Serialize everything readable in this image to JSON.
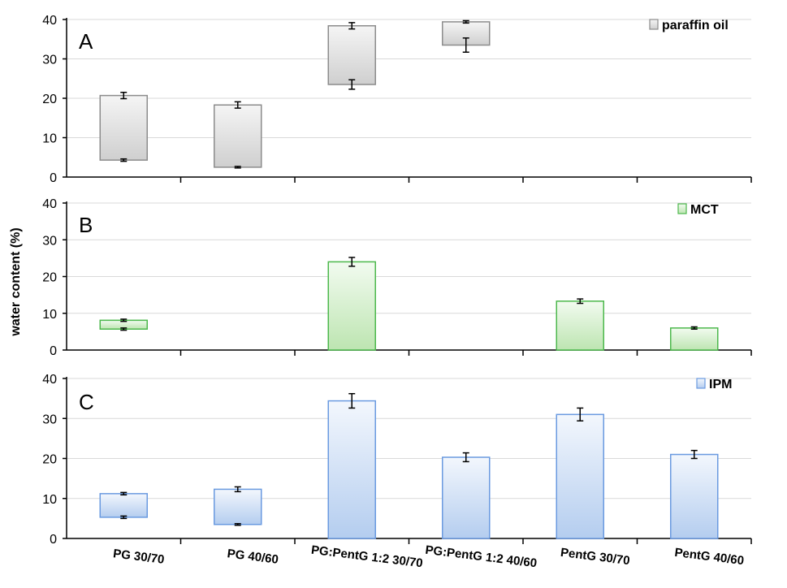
{
  "chart_data": {
    "type": "bar",
    "ylabel": "water content (%)",
    "categories": [
      "PG 30/70",
      "PG 40/60",
      "PG:PentG 1:2 30/70",
      "PG:PentG 1:2 40/60",
      "PentG 30/70",
      "PentG 40/60"
    ],
    "ylim": [
      0,
      40
    ],
    "yticks": [
      0,
      10,
      20,
      30,
      40
    ],
    "grid": true,
    "legend_position": "top-right",
    "panels": [
      {
        "letter": "A",
        "legend": "paraffin oil",
        "color": "#8c8c8c",
        "fill_light": "#f5f5f5",
        "fill_dark": "#cfcfcf",
        "bars": [
          {
            "category": "PG 30/70",
            "low": 4.3,
            "high": 20.7,
            "low_err": 0.3,
            "high_err": 0.8
          },
          {
            "category": "PG 40/60",
            "low": 2.5,
            "high": 18.3,
            "low_err": 0.2,
            "high_err": 0.8
          },
          {
            "category": "PG:PentG 1:2 30/70",
            "low": 23.5,
            "high": 38.4,
            "low_err": 1.2,
            "high_err": 0.8
          },
          {
            "category": "PG:PentG 1:2 40/60",
            "low": 33.5,
            "high": 39.4,
            "low_err": 1.8,
            "high_err": 0.3
          }
        ]
      },
      {
        "letter": "B",
        "legend": "MCT",
        "color": "#4cb84c",
        "fill_light": "#f2fbf0",
        "fill_dark": "#bde5b1",
        "bars": [
          {
            "category": "PG 30/70",
            "low": 5.7,
            "high": 8.1,
            "low_err": 0.3,
            "high_err": 0.3
          },
          {
            "category": "PG:PentG 1:2 30/70",
            "low": 0,
            "high": 24.0,
            "low_err": 0,
            "high_err": 1.2
          },
          {
            "category": "PentG 30/70",
            "low": 0,
            "high": 13.3,
            "low_err": 0,
            "high_err": 0.6
          },
          {
            "category": "PentG 40/60",
            "low": 0,
            "high": 6.0,
            "low_err": 0,
            "high_err": 0.3
          }
        ]
      },
      {
        "letter": "C",
        "legend": "IPM",
        "color": "#6a9ae0",
        "fill_light": "#f3f7fd",
        "fill_dark": "#b4cdef",
        "bars": [
          {
            "category": "PG 30/70",
            "low": 5.3,
            "high": 11.2,
            "low_err": 0.3,
            "high_err": 0.3
          },
          {
            "category": "PG 40/60",
            "low": 3.5,
            "high": 12.3,
            "low_err": 0.2,
            "high_err": 0.6
          },
          {
            "category": "PG:PentG 1:2 30/70",
            "low": 0,
            "high": 34.4,
            "low_err": 0,
            "high_err": 1.8
          },
          {
            "category": "PG:PentG 1:2 40/60",
            "low": 0,
            "high": 20.3,
            "low_err": 0,
            "high_err": 1.1
          },
          {
            "category": "PentG 30/70",
            "low": 0,
            "high": 31.0,
            "low_err": 0,
            "high_err": 1.6
          },
          {
            "category": "PentG 40/60",
            "low": 0,
            "high": 21.0,
            "low_err": 0,
            "high_err": 1.0
          }
        ]
      }
    ]
  }
}
